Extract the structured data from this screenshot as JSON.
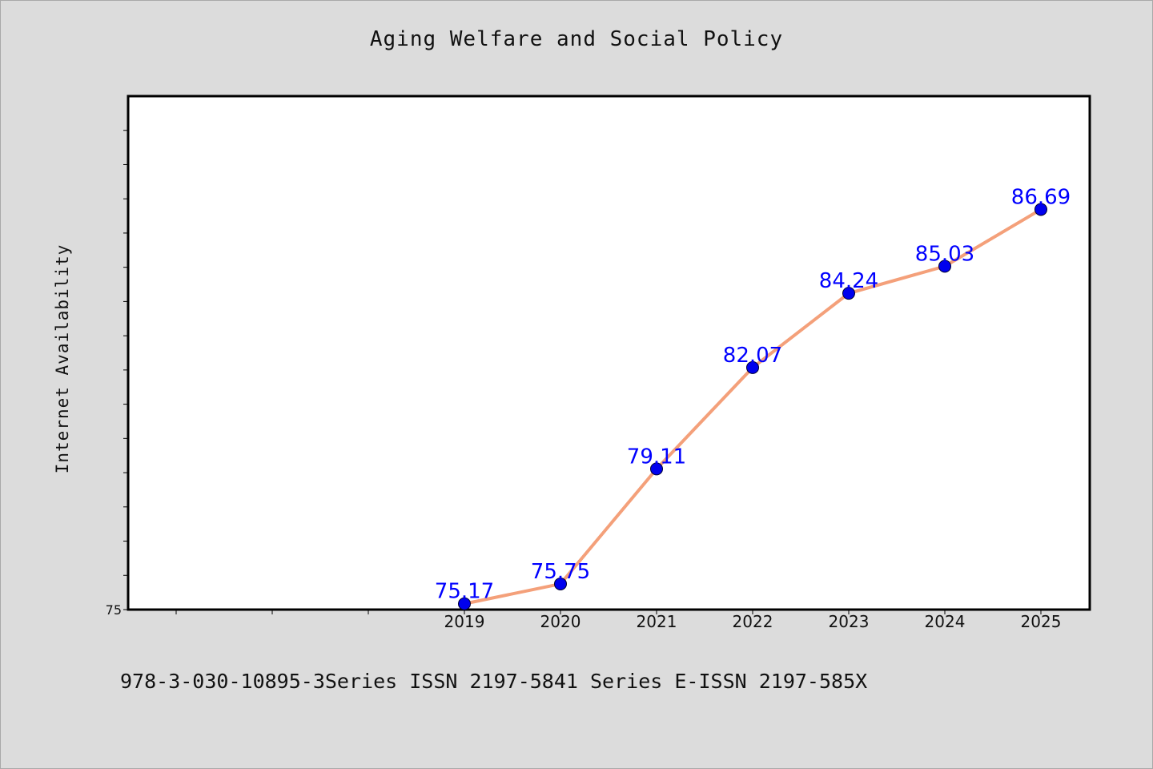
{
  "footer_text": "978-3-030-10895-3Series ISSN 2197-5841 Series E-ISSN 2197-585X",
  "chart_data": {
    "type": "line",
    "title": "Aging Welfare and Social Policy",
    "xlabel": "",
    "ylabel": "Internet Availability",
    "categories": [
      "2019",
      "2020",
      "2021",
      "2022",
      "2023",
      "2024",
      "2025"
    ],
    "series": [
      {
        "values": [
          75.17,
          75.75,
          79.11,
          82.07,
          84.24,
          85.03,
          86.69
        ],
        "labels": [
          "75.17",
          "75.75",
          "79.11",
          "82.07",
          "84.24",
          "85.03",
          "86.69"
        ],
        "line_color": "#f4a07a",
        "marker_color": "#0000ee"
      }
    ],
    "ylim": [
      75,
      90
    ],
    "ytick_labels": [
      "75"
    ],
    "grid": false,
    "legend": "none"
  }
}
